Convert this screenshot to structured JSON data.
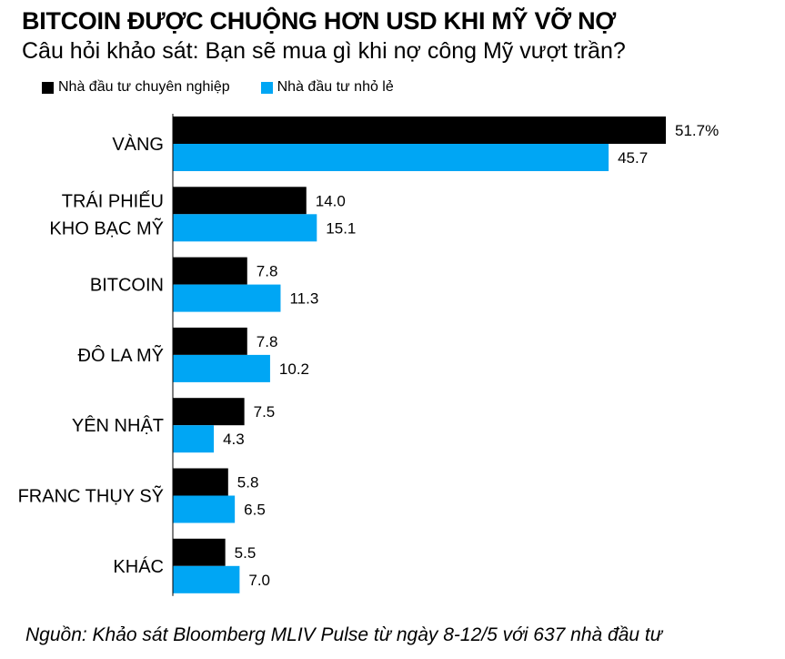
{
  "chart_data": {
    "type": "bar",
    "orientation": "horizontal",
    "title": "BITCOIN ĐƯỢC CHUỘNG HƠN USD KHI MỸ VỠ NỢ",
    "subtitle": "Câu hỏi khảo sát: Bạn sẽ mua gì khi nợ công Mỹ vượt trần?",
    "categories": [
      [
        "VÀNG"
      ],
      [
        "TRÁI PHIẾU",
        "KHO BẠC MỸ"
      ],
      [
        "BITCOIN"
      ],
      [
        "ĐÔ LA MỸ"
      ],
      [
        "YÊN NHẬT"
      ],
      [
        "FRANC THỤY SỸ"
      ],
      [
        "KHÁC"
      ]
    ],
    "series": [
      {
        "name": "Nhà đầu tư chuyên nghiệp",
        "color": "#000000",
        "values": [
          51.7,
          14.0,
          7.8,
          7.8,
          7.5,
          5.8,
          5.5
        ],
        "labels": [
          "51.7%",
          "14.0",
          "7.8",
          "7.8",
          "7.5",
          "5.8",
          "5.5"
        ]
      },
      {
        "name": "Nhà đầu tư nhỏ lẻ",
        "color": "#00a6f4",
        "values": [
          45.7,
          15.1,
          11.3,
          10.2,
          4.3,
          6.5,
          7.0
        ],
        "labels": [
          "45.7",
          "15.1",
          "11.3",
          "10.2",
          "4.3",
          "6.5",
          "7.0"
        ]
      }
    ],
    "xlim": [
      0,
      51.7
    ],
    "grid": false,
    "legend_position": "top-left",
    "source": "Nguồn: Khảo sát Bloomberg MLIV Pulse từ ngày 8-12/5 với 637 nhà đầu tư"
  }
}
